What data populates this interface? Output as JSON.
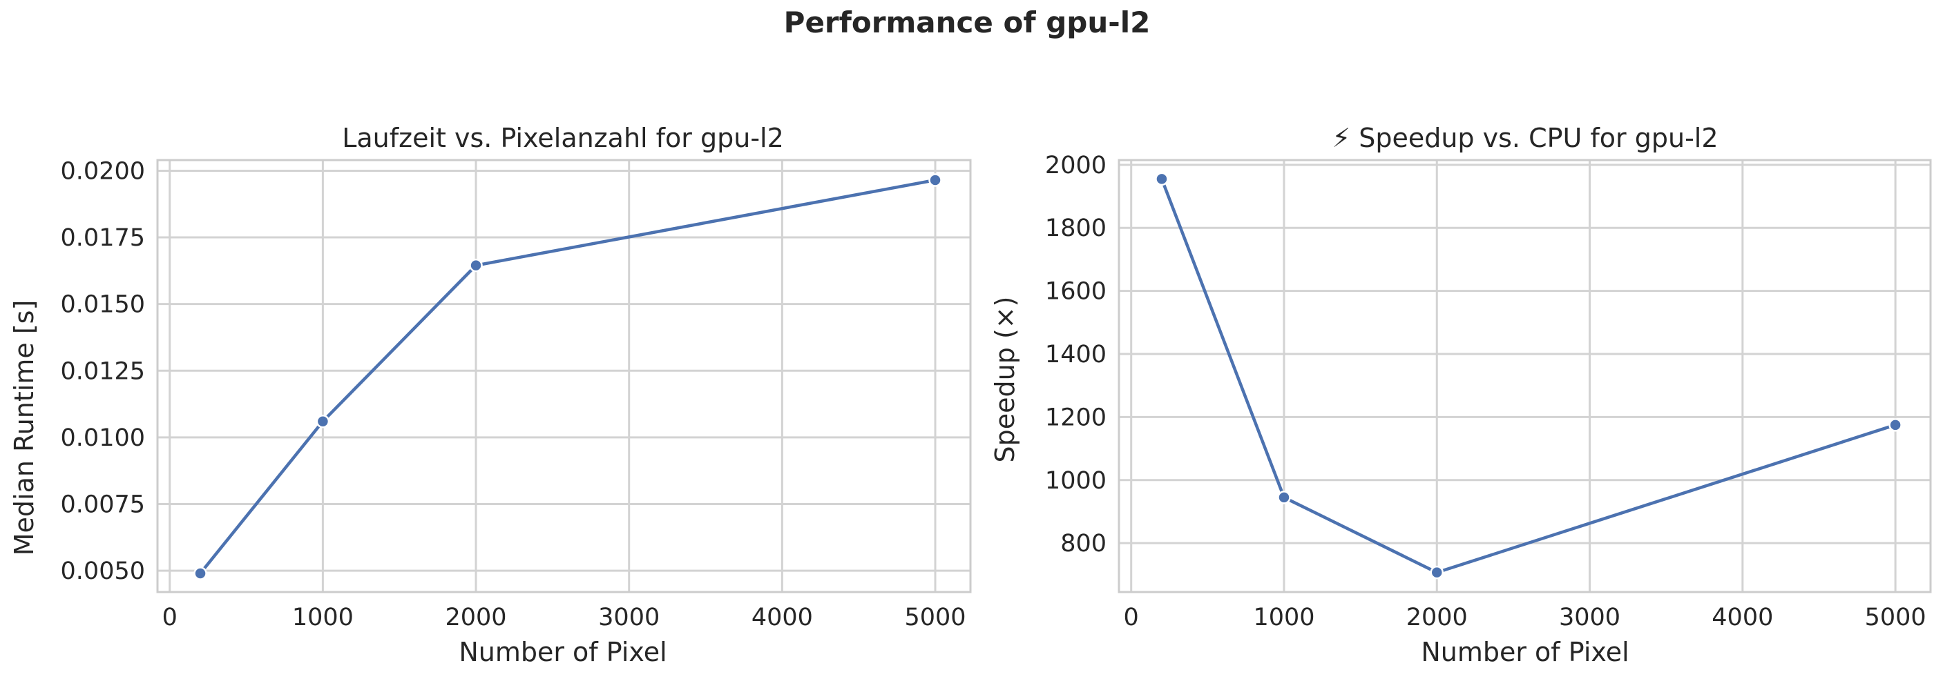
{
  "figure": {
    "title": "Performance of gpu-l2"
  },
  "chart_data": [
    {
      "type": "line",
      "title": "Laufzeit vs. Pixelanzahl for gpu-l2",
      "xlabel": "Number of Pixel",
      "ylabel": "Median Runtime [s]",
      "x": [
        200,
        1000,
        2000,
        5000
      ],
      "series": [
        {
          "values": [
            0.0049,
            0.0106,
            0.01645,
            0.01965
          ]
        }
      ],
      "xlim": [
        -80,
        5230
      ],
      "ylim": [
        0.0042,
        0.0204
      ],
      "xticks": [
        0,
        1000,
        2000,
        3000,
        4000,
        5000
      ],
      "xtick_labels": [
        "0",
        "1000",
        "2000",
        "3000",
        "4000",
        "5000"
      ],
      "yticks": [
        0.005,
        0.0075,
        0.01,
        0.0125,
        0.015,
        0.0175,
        0.02
      ],
      "ytick_labels": [
        "0.0050",
        "0.0075",
        "0.0100",
        "0.0125",
        "0.0150",
        "0.0175",
        "0.0200"
      ],
      "grid": true,
      "line_color": "#4c72b0"
    },
    {
      "type": "line",
      "title": "⚡ Speedup vs. CPU for gpu-l2",
      "xlabel": "Number of Pixel",
      "ylabel": "Speedup (×)",
      "x": [
        200,
        1000,
        2000,
        5000
      ],
      "series": [
        {
          "values": [
            1955,
            945,
            707,
            1175
          ]
        }
      ],
      "xlim": [
        -80,
        5230
      ],
      "ylim": [
        645,
        2015
      ],
      "xticks": [
        0,
        1000,
        2000,
        3000,
        4000,
        5000
      ],
      "xtick_labels": [
        "0",
        "1000",
        "2000",
        "3000",
        "4000",
        "5000"
      ],
      "yticks": [
        800,
        1000,
        1200,
        1400,
        1600,
        1800,
        2000
      ],
      "ytick_labels": [
        "800",
        "1000",
        "1200",
        "1400",
        "1600",
        "1800",
        "2000"
      ],
      "grid": true,
      "line_color": "#4c72b0"
    }
  ]
}
